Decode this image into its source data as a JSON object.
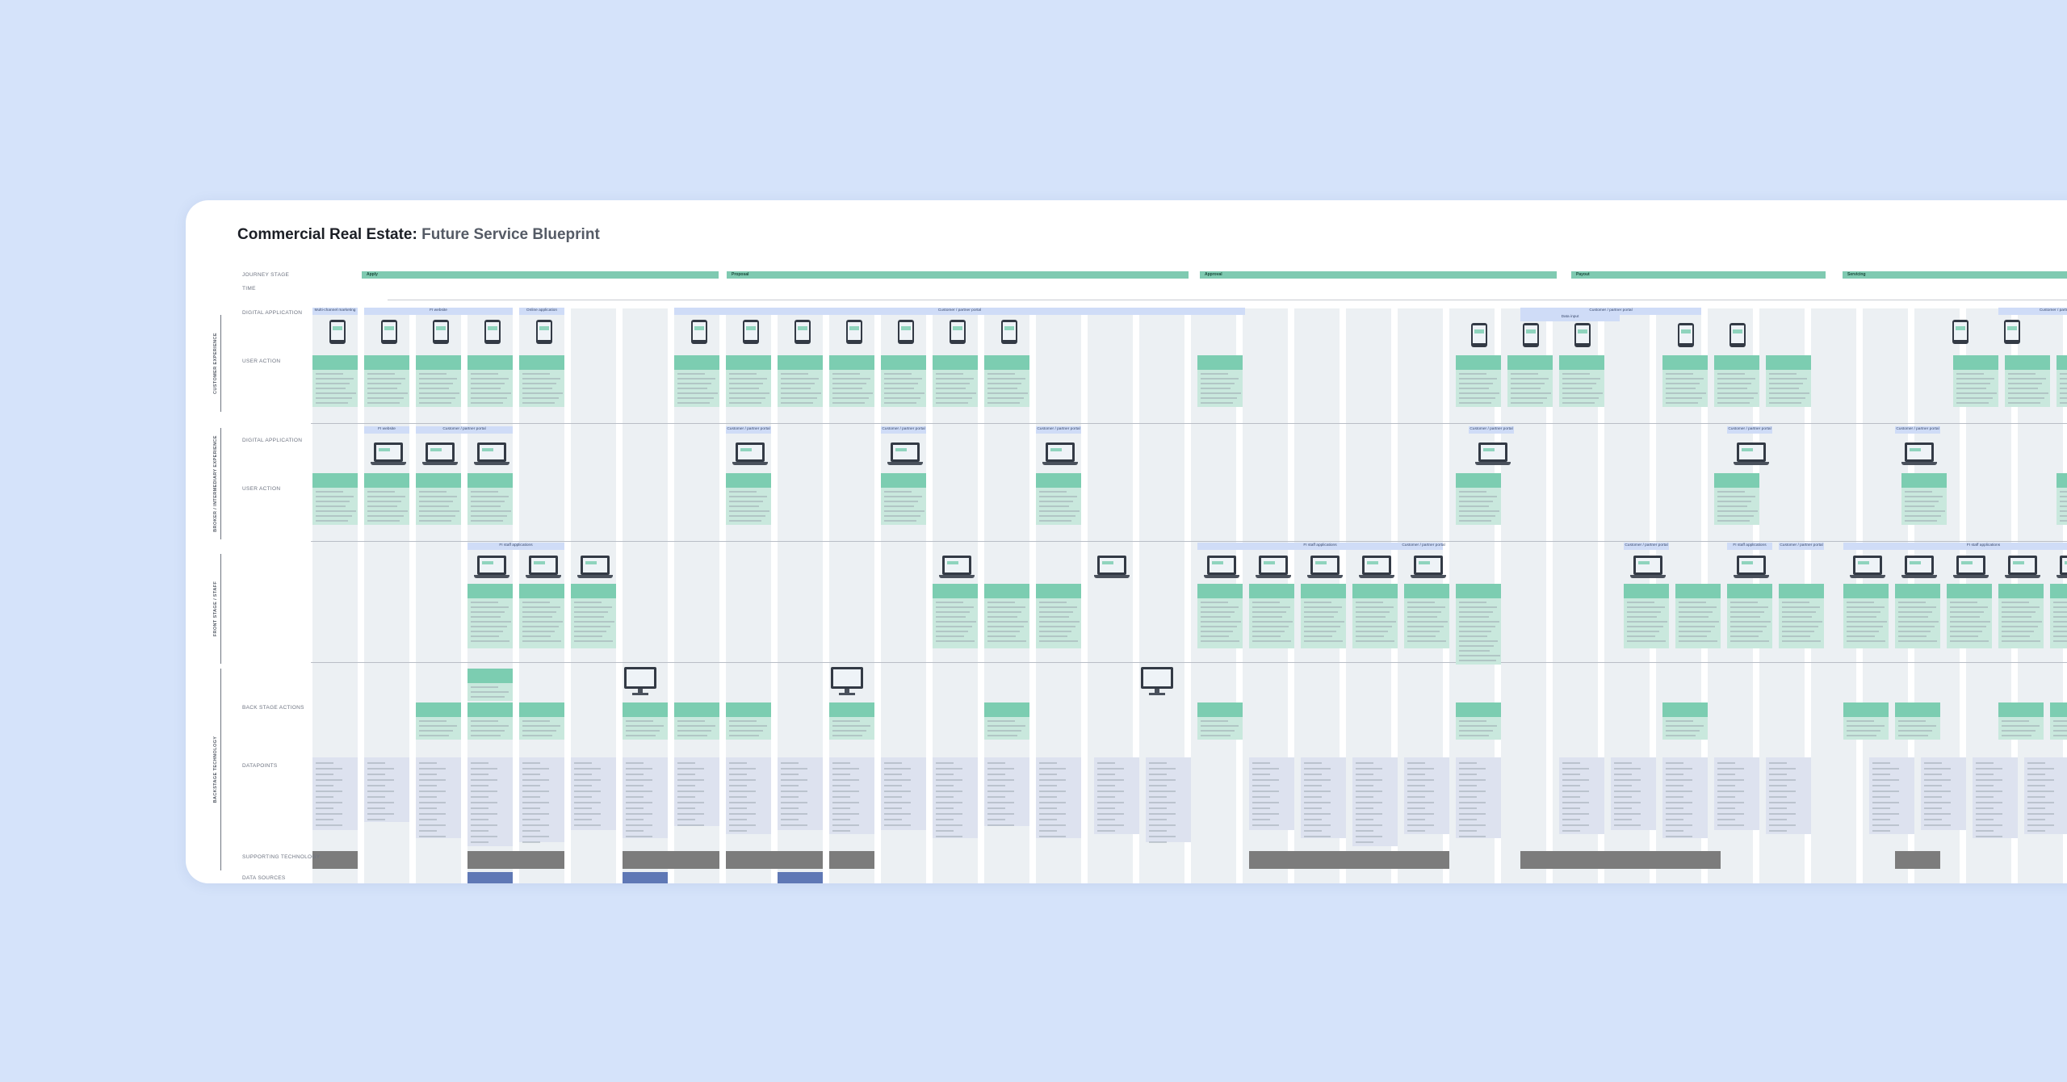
{
  "title": {
    "main": "Commercial Real Estate:",
    "sub": "Future Service Blueprint"
  },
  "row_labels": {
    "journey_stage": "JOURNEY STAGE",
    "time": "TIME",
    "digital_application_1": "DIGITAL APPLICATION",
    "user_action_1": "USER ACTION",
    "digital_application_2": "DIGITAL APPLICATION",
    "user_action_2": "USER ACTION",
    "back_stage_actions": "BACK STAGE ACTIONS",
    "datapoints": "DATAPOINTS",
    "supporting_technology": "SUPPORTING TECHNOLOGY",
    "data_sources": "DATA SOURCES"
  },
  "lanes": {
    "customer": "CUSTOMER EXPERIENCE",
    "broker": "BROKER / INTERMEDIARY EXPERIENCE",
    "front": "FRONT STAGE / STAFF",
    "back": "BACKSTAGE TECHNOLOGY"
  },
  "stages": [
    "Apply",
    "Proposal",
    "Approval",
    "Payout",
    "Servicing"
  ],
  "app_headers": {
    "multi_channel": "Multi-channel marketing",
    "fi_website": "FI website",
    "online_application": "Online application",
    "customer_portal": "Customer / partner portal",
    "fi_staff_applications": "FI staff applications",
    "data_input": "Data input"
  },
  "colors": {
    "background": "#d5e3fa",
    "board": "#ffffff",
    "stage_bar": "#7fcab1",
    "column": "#ecf0f3",
    "card": "#c9e8dd",
    "card_header": "#7ccdb1",
    "app_header": "#cfdcf7",
    "datapoint": "#dde2ef",
    "technology": "#7c7c7c",
    "data_source": "#5f78b5"
  }
}
